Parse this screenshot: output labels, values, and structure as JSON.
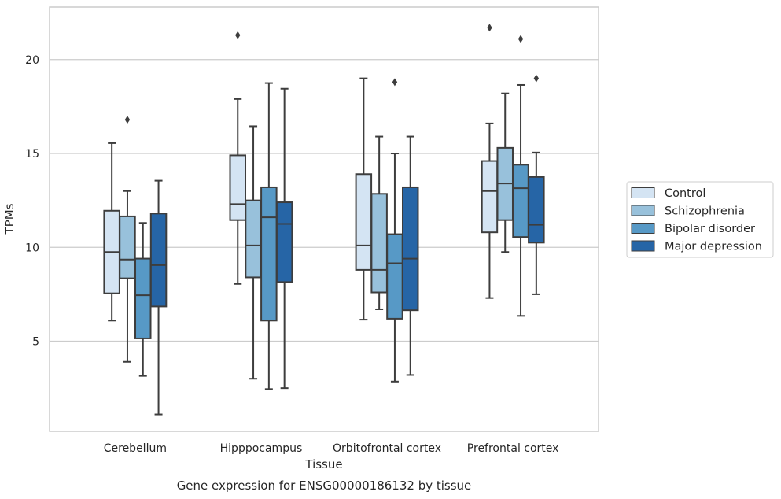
{
  "chart_data": {
    "type": "boxplot",
    "title": "Gene expression for ENSG00000186132 by tissue",
    "xlabel": "Tissue",
    "ylabel": "TPMs",
    "ylim": [
      0.2,
      22.8
    ],
    "yticks": [
      5,
      10,
      15,
      20
    ],
    "grid": "horizontal",
    "legend_position": "right",
    "categories": [
      "Cerebellum",
      "Hipppocampus",
      "Orbitofrontal cortex",
      "Prefrontal cortex"
    ],
    "series": [
      {
        "name": "Control",
        "color": "#d4e4f3",
        "boxes": [
          {
            "whislo": 6.1,
            "q1": 7.55,
            "med": 9.75,
            "q3": 11.95,
            "whishi": 15.55,
            "fliers": []
          },
          {
            "whislo": 8.05,
            "q1": 11.45,
            "med": 12.3,
            "q3": 14.9,
            "whishi": 17.9,
            "fliers": [
              21.3
            ]
          },
          {
            "whislo": 6.15,
            "q1": 8.8,
            "med": 10.1,
            "q3": 13.9,
            "whishi": 19.0,
            "fliers": []
          },
          {
            "whislo": 7.3,
            "q1": 10.8,
            "med": 13.0,
            "q3": 14.6,
            "whishi": 16.6,
            "fliers": [
              21.7
            ]
          }
        ]
      },
      {
        "name": "Schizophrenia",
        "color": "#98c1db",
        "boxes": [
          {
            "whislo": 3.9,
            "q1": 8.35,
            "med": 9.35,
            "q3": 11.65,
            "whishi": 13.0,
            "fliers": [
              16.8
            ]
          },
          {
            "whislo": 3.0,
            "q1": 8.4,
            "med": 10.1,
            "q3": 12.5,
            "whishi": 16.45,
            "fliers": []
          },
          {
            "whislo": 6.7,
            "q1": 7.6,
            "med": 8.8,
            "q3": 12.85,
            "whishi": 15.9,
            "fliers": []
          },
          {
            "whislo": 9.75,
            "q1": 11.45,
            "med": 13.4,
            "q3": 15.3,
            "whishi": 18.2,
            "fliers": []
          }
        ]
      },
      {
        "name": "Bipolar disorder",
        "color": "#5799c6",
        "boxes": [
          {
            "whislo": 3.15,
            "q1": 5.15,
            "med": 7.45,
            "q3": 9.4,
            "whishi": 11.3,
            "fliers": []
          },
          {
            "whislo": 2.45,
            "q1": 6.1,
            "med": 11.6,
            "q3": 13.2,
            "whishi": 18.75,
            "fliers": []
          },
          {
            "whislo": 2.85,
            "q1": 6.2,
            "med": 9.15,
            "q3": 10.7,
            "whishi": 15.0,
            "fliers": [
              18.8
            ]
          },
          {
            "whislo": 6.35,
            "q1": 10.55,
            "med": 13.15,
            "q3": 14.4,
            "whishi": 18.65,
            "fliers": [
              21.1
            ]
          }
        ]
      },
      {
        "name": "Major depression",
        "color": "#2665a6",
        "boxes": [
          {
            "whislo": 1.1,
            "q1": 6.85,
            "med": 9.05,
            "q3": 11.8,
            "whishi": 13.55,
            "fliers": []
          },
          {
            "whislo": 2.5,
            "q1": 8.15,
            "med": 11.25,
            "q3": 12.4,
            "whishi": 18.45,
            "fliers": []
          },
          {
            "whislo": 3.2,
            "q1": 6.65,
            "med": 9.4,
            "q3": 13.2,
            "whishi": 15.9,
            "fliers": []
          },
          {
            "whislo": 7.5,
            "q1": 10.25,
            "med": 11.2,
            "q3": 13.75,
            "whishi": 15.05,
            "fliers": [
              19.0
            ]
          }
        ]
      }
    ]
  }
}
